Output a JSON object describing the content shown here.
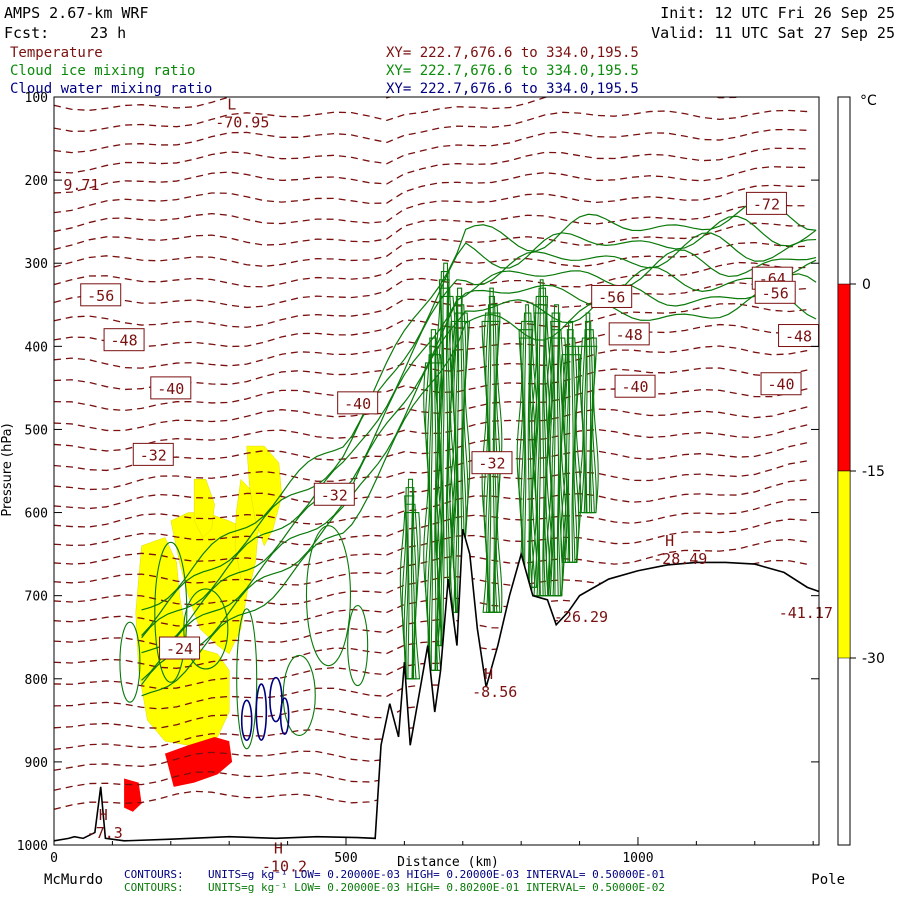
{
  "header": {
    "model": "AMPS 2.67-km WRF",
    "forecast_label": "Fcst:",
    "forecast_hours": "23 h",
    "init": "Init: 12 UTC Fri 26 Sep 25",
    "valid": "Valid: 11 UTC Sat 27 Sep 25"
  },
  "fields": [
    {
      "name": "Temperature",
      "xy": "XY= 222.7,676.6 to 334.0,195.5",
      "color": "#7a1010"
    },
    {
      "name": "Cloud ice mixing ratio",
      "xy": "XY= 222.7,676.6 to 334.0,195.5",
      "color": "#0a8a0a"
    },
    {
      "name": "Cloud water mixing ratio",
      "xy": "XY= 222.7,676.6 to 334.0,195.5",
      "color": "#000080"
    }
  ],
  "footer": {
    "start_label": "McMurdo",
    "end_label": "Pole",
    "contour_prefix": "CONTOURS:",
    "water_line": "UNITS=g kg⁻¹  LOW= 0.20000E-03  HIGH= 0.20000E-03  INTERVAL= 0.50000E-01",
    "ice_line": "UNITS=g kg⁻¹  LOW= 0.20000E-03  HIGH= 0.80200E-01  INTERVAL= 0.50000E-02"
  },
  "colors": {
    "temperature": "#7a1010",
    "ice": "#0a7a0a",
    "water": "#000080",
    "terrain": "#000000",
    "warm_band": "#ff0000",
    "cold_band": "#ffff00"
  },
  "chart_data": {
    "type": "heatmap",
    "title": "",
    "xlabel": "Distance (km)",
    "ylabel": "Pressure (hPa)",
    "x_ticks": [
      0,
      500,
      1000
    ],
    "y_ticks": [
      100,
      200,
      300,
      400,
      500,
      600,
      700,
      800,
      900,
      1000
    ],
    "xlim": [
      0,
      1310
    ],
    "ylim": [
      100,
      1000
    ],
    "colorbar": {
      "unit": "°C",
      "ticks": [
        0,
        -15,
        -30
      ],
      "bands": [
        {
          "from": 0,
          "to": -15,
          "color": "#ff0000"
        },
        {
          "from": -15,
          "to": -30,
          "color": "#ffff00"
        }
      ]
    },
    "temperature_labels": [
      {
        "text": "-72",
        "x": 1220,
        "p": 228
      },
      {
        "text": "-64",
        "x": 1230,
        "p": 318
      },
      {
        "text": "-56",
        "x": 80,
        "p": 338
      },
      {
        "text": "-56",
        "x": 1235,
        "p": 335
      },
      {
        "text": "-56",
        "x": 955,
        "p": 340
      },
      {
        "text": "-48",
        "x": 120,
        "p": 392
      },
      {
        "text": "-48",
        "x": 1275,
        "p": 387
      },
      {
        "text": "-48",
        "x": 985,
        "p": 385
      },
      {
        "text": "-40",
        "x": 200,
        "p": 450
      },
      {
        "text": "-40",
        "x": 1245,
        "p": 445
      },
      {
        "text": "-40",
        "x": 995,
        "p": 448
      },
      {
        "text": "-40",
        "x": 520,
        "p": 468
      },
      {
        "text": "-32",
        "x": 170,
        "p": 530
      },
      {
        "text": "-32",
        "x": 480,
        "p": 578
      },
      {
        "text": "-32",
        "x": 750,
        "p": 540
      },
      {
        "text": "-24",
        "x": 215,
        "p": 763
      }
    ],
    "extrema": [
      {
        "kind": "L",
        "value": "-70.95",
        "x": 300,
        "p": 120
      },
      {
        "kind": "",
        "value": "9.71",
        "x": 40,
        "p": 195
      },
      {
        "kind": "H",
        "value": "-28.49",
        "x": 1050,
        "p": 645
      },
      {
        "kind": "",
        "value": "-41.17",
        "x": 1265,
        "p": 710
      },
      {
        "kind": "",
        "value": "-26.29",
        "x": 880,
        "p": 715
      },
      {
        "kind": "H",
        "value": "-8.56",
        "x": 740,
        "p": 805
      },
      {
        "kind": "H",
        "value": "-7.3",
        "x": 80,
        "p": 975
      },
      {
        "kind": "H",
        "value": "-10.2",
        "x": 380,
        "p": 1015
      }
    ],
    "terrain_profile": [
      [
        0,
        995
      ],
      [
        25,
        992
      ],
      [
        35,
        990
      ],
      [
        50,
        992
      ],
      [
        70,
        985
      ],
      [
        80,
        930
      ],
      [
        88,
        992
      ],
      [
        120,
        995
      ],
      [
        200,
        993
      ],
      [
        300,
        990
      ],
      [
        380,
        992
      ],
      [
        450,
        990
      ],
      [
        520,
        991
      ],
      [
        550,
        992
      ],
      [
        560,
        880
      ],
      [
        575,
        830
      ],
      [
        590,
        870
      ],
      [
        600,
        780
      ],
      [
        610,
        880
      ],
      [
        625,
        820
      ],
      [
        640,
        760
      ],
      [
        652,
        840
      ],
      [
        662,
        790
      ],
      [
        675,
        680
      ],
      [
        690,
        760
      ],
      [
        700,
        620
      ],
      [
        712,
        650
      ],
      [
        725,
        740
      ],
      [
        740,
        810
      ],
      [
        760,
        760
      ],
      [
        780,
        700
      ],
      [
        800,
        650
      ],
      [
        820,
        700
      ],
      [
        845,
        705
      ],
      [
        860,
        735
      ],
      [
        880,
        720
      ],
      [
        900,
        700
      ],
      [
        950,
        680
      ],
      [
        1000,
        670
      ],
      [
        1050,
        663
      ],
      [
        1100,
        660
      ],
      [
        1150,
        660
      ],
      [
        1200,
        662
      ],
      [
        1250,
        672
      ],
      [
        1290,
        690
      ],
      [
        1310,
        695
      ]
    ],
    "ice_columns": [
      {
        "x": 610,
        "top": 560,
        "bottom": 800
      },
      {
        "x": 650,
        "top": 380,
        "bottom": 790
      },
      {
        "x": 670,
        "top": 300,
        "bottom": 760
      },
      {
        "x": 695,
        "top": 330,
        "bottom": 720
      },
      {
        "x": 750,
        "top": 330,
        "bottom": 720
      },
      {
        "x": 810,
        "top": 350,
        "bottom": 690
      },
      {
        "x": 835,
        "top": 320,
        "bottom": 700
      },
      {
        "x": 860,
        "top": 350,
        "bottom": 700
      },
      {
        "x": 885,
        "top": 370,
        "bottom": 660
      },
      {
        "x": 915,
        "top": 360,
        "bottom": 600
      }
    ]
  }
}
